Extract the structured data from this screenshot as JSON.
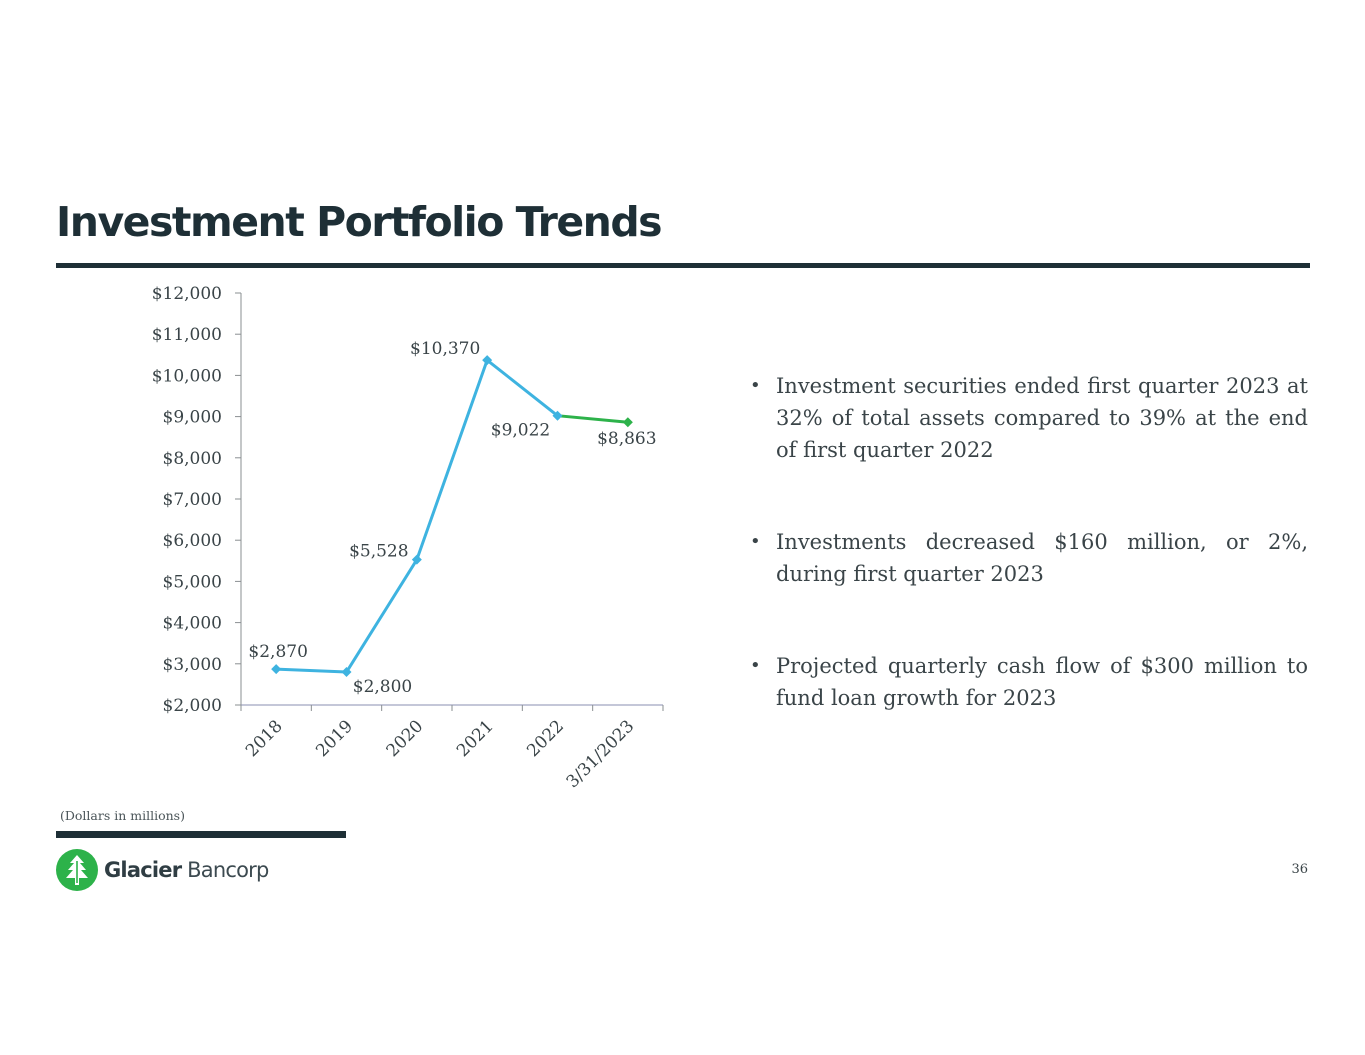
{
  "slide": {
    "title": "Investment Portfolio Trends",
    "footnote": "(Dollars in millions)",
    "page_number": "36"
  },
  "logo": {
    "name_strong": "Glacier",
    "name_light": "Bancorp",
    "brand_color": "#2db24a"
  },
  "bullets": [
    "Investment securities ended first quarter 2023 at 32% of total assets compared to 39% at the end of first quarter 2022",
    "Investments decreased $160 million, or 2%, during first quarter 2023",
    "Projected quarterly cash flow of $300 million to fund loan growth for 2023"
  ],
  "chart_data": {
    "type": "line",
    "title": "",
    "xlabel": "",
    "ylabel": "",
    "categories": [
      "2018",
      "2019",
      "2020",
      "2021",
      "2022",
      "3/31/2023"
    ],
    "series": [
      {
        "name": "Investment Portfolio",
        "values": [
          2870,
          2800,
          5528,
          10370,
          9022,
          8863
        ],
        "color": "#3eb3e0",
        "last_segment_color": "#2db24a"
      }
    ],
    "data_labels": [
      "$2,870",
      "$2,800",
      "$5,528",
      "$10,370",
      "$9,022",
      "$8,863"
    ],
    "ylim": [
      2000,
      12000
    ],
    "ytick_step": 1000,
    "ytick_labels": [
      "$2,000",
      "$3,000",
      "$4,000",
      "$5,000",
      "$6,000",
      "$7,000",
      "$8,000",
      "$9,000",
      "$10,000",
      "$11,000",
      "$12,000"
    ],
    "grid": false,
    "legend": "none"
  }
}
